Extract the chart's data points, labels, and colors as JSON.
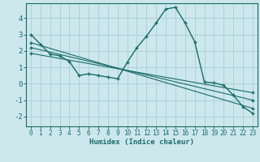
{
  "xlabel": "Humidex (Indice chaleur)",
  "background_color": "#cce8ec",
  "grid_color": "#aacdd4",
  "line_color": "#1a6b6b",
  "xlim": [
    -0.5,
    23.5
  ],
  "ylim": [
    -2.6,
    4.9
  ],
  "xticks": [
    0,
    1,
    2,
    3,
    4,
    5,
    6,
    7,
    8,
    9,
    10,
    11,
    12,
    13,
    14,
    15,
    16,
    17,
    18,
    19,
    20,
    21,
    22,
    23
  ],
  "yticks": [
    -2,
    -1,
    0,
    1,
    2,
    3,
    4
  ],
  "line1_x": [
    0,
    1,
    2,
    3,
    4,
    5,
    6,
    7,
    8,
    9,
    10,
    11,
    12,
    13,
    14,
    15,
    16,
    17,
    18,
    19,
    20,
    21,
    22,
    23
  ],
  "line1_y": [
    3.0,
    2.4,
    1.8,
    1.7,
    1.35,
    0.5,
    0.6,
    0.5,
    0.4,
    0.3,
    1.3,
    2.2,
    2.9,
    3.7,
    4.55,
    4.65,
    3.7,
    2.55,
    0.1,
    0.05,
    -0.1,
    -0.7,
    -1.4,
    -1.8
  ],
  "line2_x": [
    0,
    23
  ],
  "line2_y": [
    2.5,
    -1.5
  ],
  "line3_x": [
    0,
    23
  ],
  "line3_y": [
    2.2,
    -1.0
  ],
  "line4_x": [
    0,
    23
  ],
  "line4_y": [
    1.85,
    -0.55
  ]
}
